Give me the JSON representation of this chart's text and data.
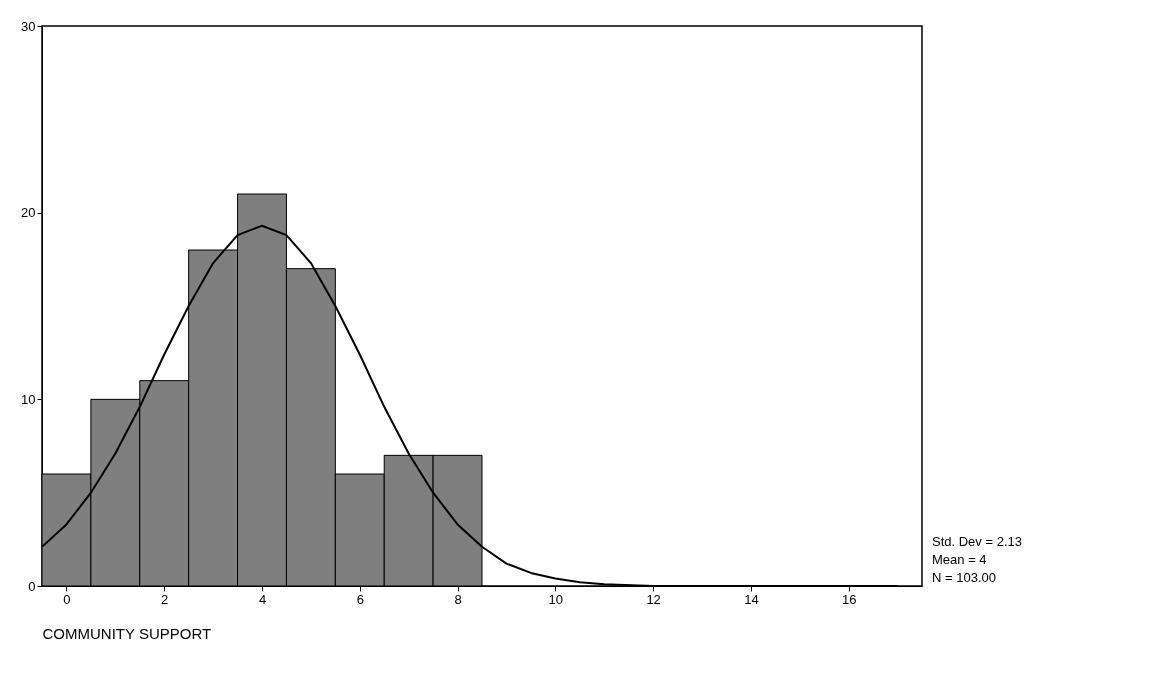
{
  "chart_data": {
    "type": "histogram",
    "xlabel": "COMMUNITY SUPPORT",
    "bins": [
      -0.5,
      0.5,
      1.5,
      2.5,
      3.5,
      4.5,
      5.5,
      6.5,
      7.5,
      8.5
    ],
    "values": [
      6,
      10,
      11,
      18,
      21,
      17,
      6,
      7,
      7
    ],
    "color": "#7f7f7f",
    "series": [
      {
        "type": "line",
        "color": "#000000",
        "x": [
          -0.5,
          0,
          0.5,
          1,
          1.5,
          2,
          2.5,
          3,
          3.5,
          4,
          4.5,
          5,
          5.5,
          6,
          6.5,
          7,
          7.5,
          8,
          8.5,
          9,
          9.5,
          10,
          10.5,
          11,
          12,
          13,
          14,
          15,
          16,
          17
        ],
        "values": [
          2.1,
          3.3,
          5,
          7.1,
          9.6,
          12.4,
          15,
          17.3,
          18.8,
          19.3,
          18.8,
          17.3,
          15,
          12.4,
          9.6,
          7.1,
          5,
          3.3,
          2.1,
          1.2,
          0.7,
          0.4,
          0.2,
          0.1,
          0,
          0,
          0,
          0,
          0,
          0
        ]
      }
    ],
    "xlim": [
      -0.5,
      17.5
    ],
    "xticks": [
      0,
      2,
      4,
      6,
      8,
      10,
      12,
      14,
      16
    ],
    "ylim": [
      0,
      30
    ],
    "yticks": [
      0,
      10,
      20,
      30
    ],
    "grid": false,
    "annotations": [
      "Std. Dev = 2.13",
      "Mean = 4",
      "N = 103.00"
    ]
  }
}
